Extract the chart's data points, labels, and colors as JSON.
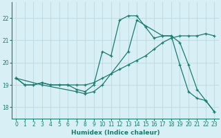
{
  "xlabel": "Humidex (Indice chaleur)",
  "xlim": [
    -0.5,
    23.5
  ],
  "ylim": [
    17.5,
    22.7
  ],
  "yticks": [
    18,
    19,
    20,
    21,
    22
  ],
  "xticks": [
    0,
    1,
    2,
    3,
    4,
    5,
    6,
    7,
    8,
    9,
    10,
    11,
    12,
    13,
    14,
    15,
    16,
    17,
    18,
    19,
    20,
    21,
    22,
    23
  ],
  "bg_color": "#d8eff5",
  "grid_color": "#c0dde6",
  "line_color": "#1a7a6e",
  "line1_x": [
    0,
    1,
    2,
    3,
    4,
    5,
    6,
    7,
    8,
    9,
    10,
    11,
    12,
    13,
    14,
    15,
    16,
    17,
    18,
    19,
    20,
    21,
    22,
    23
  ],
  "line1_y": [
    19.3,
    19.0,
    19.0,
    19.1,
    19.0,
    19.0,
    19.0,
    18.8,
    18.7,
    19.0,
    20.5,
    20.3,
    21.9,
    22.1,
    22.1,
    21.6,
    21.1,
    21.2,
    21.2,
    19.9,
    18.7,
    18.4,
    18.3,
    17.8
  ],
  "line2_x": [
    0,
    1,
    2,
    3,
    4,
    5,
    6,
    7,
    8,
    9,
    10,
    11,
    12,
    13,
    14,
    15,
    16,
    17,
    18,
    19,
    20,
    21,
    22,
    23
  ],
  "line2_y": [
    19.3,
    19.0,
    19.0,
    19.1,
    19.0,
    19.0,
    19.0,
    19.0,
    19.0,
    19.1,
    19.3,
    19.5,
    19.7,
    19.9,
    20.1,
    20.3,
    20.6,
    20.9,
    21.1,
    21.2,
    21.2,
    21.2,
    21.3,
    21.2
  ],
  "line3_x": [
    0,
    3,
    7,
    8,
    9,
    10,
    13,
    14,
    17,
    18,
    19,
    20,
    21,
    22,
    23
  ],
  "line3_y": [
    19.3,
    19.0,
    18.7,
    18.6,
    18.7,
    19.0,
    20.5,
    21.9,
    21.2,
    21.2,
    20.9,
    19.9,
    18.8,
    18.3,
    17.8
  ]
}
